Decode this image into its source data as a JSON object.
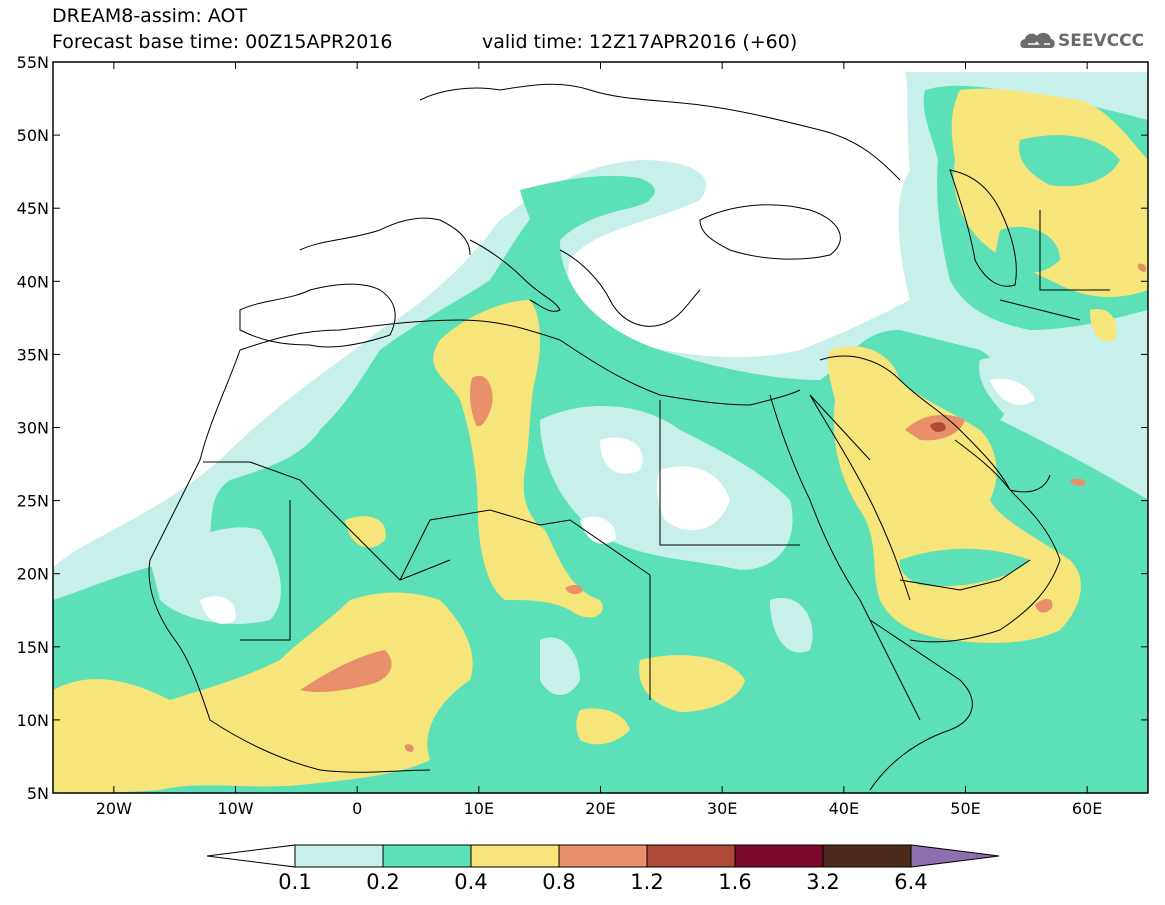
{
  "header": {
    "line1": "DREAM8-assim: AOT",
    "line2": "Forecast base time: 00Z15APR2016",
    "valid": "valid time: 12Z17APR2016 (+60)",
    "logo_text": "SEEVCCC",
    "logo_icon": "cloud-logo-icon"
  },
  "map": {
    "variable": "AOT",
    "lat_labels": [
      "55N",
      "50N",
      "45N",
      "40N",
      "35N",
      "30N",
      "25N",
      "20N",
      "15N",
      "10N",
      "5N"
    ],
    "lon_labels": [
      "20W",
      "10W",
      "0",
      "10E",
      "20E",
      "30E",
      "40E",
      "50E",
      "60E"
    ],
    "lat_range": [
      5,
      55
    ],
    "lon_range": [
      -25,
      65
    ]
  },
  "colorbar": {
    "levels": [
      "0.1",
      "0.2",
      "0.4",
      "0.8",
      "1.2",
      "1.6",
      "3.2",
      "6.4"
    ],
    "colors": [
      "#ffffff",
      "#c7f0ea",
      "#5ce0b8",
      "#f6e57a",
      "#e8906a",
      "#b04a38",
      "#7a0a2c",
      "#4a2a1a",
      "#8e6fae"
    ]
  }
}
